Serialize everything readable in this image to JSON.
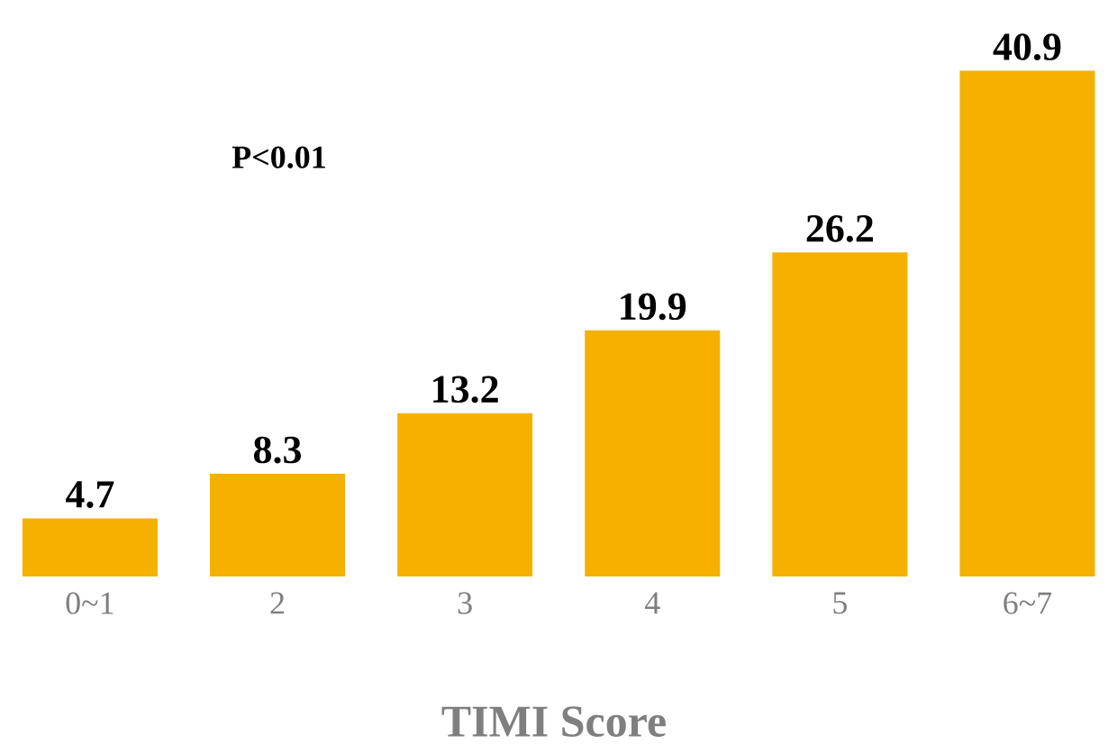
{
  "chart_data": {
    "type": "bar",
    "xlabel": "TIMI Score",
    "categories": [
      "0~1",
      "2",
      "3",
      "4",
      "5",
      "6~7"
    ],
    "values": [
      4.7,
      8.3,
      13.2,
      19.9,
      26.2,
      40.9
    ],
    "color": "#f5b000",
    "data_labels": true,
    "annotations": [
      "P<0.01"
    ]
  }
}
